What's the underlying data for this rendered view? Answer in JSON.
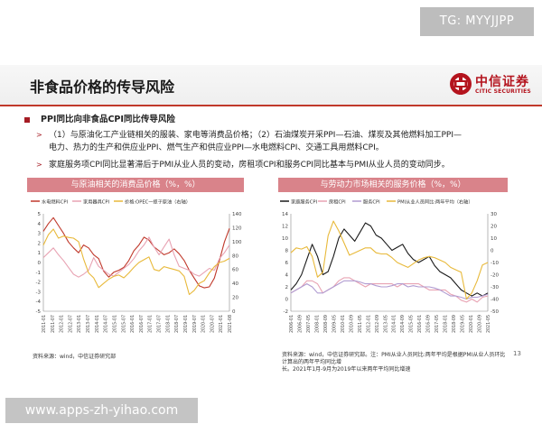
{
  "watermark_top": "TG: MYYJJPP",
  "watermark_bottom": "www.apps-zh-yihao.com",
  "slide_title": "非食品价格的传导风险",
  "logo": {
    "cn": "中信证券",
    "en": "CITIC SECURITIES",
    "color": "#b4141e"
  },
  "accent_color": "#a51c24",
  "bullet": {
    "main": "PPI同比向非食品CPI同比传导风险",
    "sub1_line1": "（1）与原油化工产业链相关的服装、家电等消费品价格；（2）石油煤炭开采PPI—石油、煤炭及其他燃料加工PPI—",
    "sub1_line2": "电力、热力的生产和供应业PPI、燃气生产和供应业PPI—水电燃料CPI、交通工具用燃料CPI。",
    "sub2": "家庭服务项CPI同比显著滞后于PMI从业人员的变动，房租项CPI和服务CPI同比基本与PMI从业人员的变动同步。"
  },
  "left_panel": {
    "header": "与原油相关的消费品价格（%，%）",
    "source": "资料来源：wind，中信证券研究部"
  },
  "right_panel": {
    "header": "与劳动力市场相关的服务价格（%，%）",
    "source_line1": "资料来源：wind，中信证券研究部。注：PMI从业人员同比:两年平均是根据PMI从业人员环比计算出的两年平均同比增",
    "source_line2": "长。2021年1月-9月为2019年以来两年平均同比增速"
  },
  "page_number": "13",
  "chart_data": [
    {
      "type": "line",
      "legend": [
        "水电燃料CPI",
        "家用器具CPI",
        "价格:OPEC一揽子原油（右轴）"
      ],
      "colors": [
        "#c0392b",
        "#e8a3b3",
        "#e8b93a"
      ],
      "y_left": {
        "ticks": [
          "-5",
          "-4",
          "-3",
          "-2",
          "-1",
          "0",
          "1",
          "2",
          "3",
          "4",
          "5"
        ],
        "min": -5,
        "max": 5
      },
      "y_right": {
        "ticks": [
          "0",
          "20",
          "40",
          "60",
          "80",
          "100",
          "120",
          "140"
        ],
        "min": 0,
        "max": 140
      },
      "x_ticks": [
        "2011-01",
        "2011-07",
        "2012-01",
        "2012-07",
        "2013-01",
        "2013-07",
        "2014-01",
        "2014-07",
        "2015-01",
        "2015-07",
        "2016-01",
        "2016-07",
        "2017-01",
        "2017-07",
        "2018-01",
        "2018-07",
        "2019-01",
        "2019-07",
        "2020-01",
        "2020-07",
        "2021-01",
        "2021-08"
      ],
      "series": [
        {
          "name": "水电燃料CPI",
          "values": [
            3.2,
            4.0,
            4.6,
            3.8,
            3.0,
            2.1,
            1.5,
            1.0,
            1.8,
            1.5,
            0.8,
            0.4,
            -0.9,
            -1.5,
            -1.0,
            -0.8,
            -0.5,
            0.2,
            1.2,
            1.8,
            2.6,
            2.3,
            1.6,
            1.2,
            0.8,
            1.0,
            1.4,
            0.9,
            0.2,
            -0.8,
            -1.6,
            -2.4,
            -2.6,
            -2.5,
            -1.6,
            0.2,
            2.1,
            3.5
          ]
        },
        {
          "name": "家用器具CPI",
          "values": [
            0.5,
            1.0,
            1.5,
            0.8,
            0.2,
            -0.5,
            -1.2,
            -1.5,
            -1.2,
            -0.8,
            0.5,
            -0.4,
            -0.8,
            -1.2,
            -1.4,
            -1.0,
            -0.6,
            -0.2,
            0.4,
            1.2,
            1.8,
            2.6,
            1.6,
            0.8,
            1.6,
            2.4,
            0.8,
            -0.4,
            -0.6,
            -0.8,
            -1.2,
            -1.4,
            -1.0,
            -0.6,
            -0.8,
            0.4,
            1.0,
            1.8
          ]
        },
        {
          "name": "价格:OPEC一揽子原油（右轴）",
          "values": [
            95,
            110,
            118,
            105,
            108,
            106,
            105,
            100,
            75,
            55,
            48,
            34,
            40,
            46,
            50,
            52,
            48,
            55,
            63,
            70,
            74,
            78,
            60,
            58,
            64,
            62,
            60,
            58,
            50,
            24,
            30,
            40,
            44,
            55,
            64,
            70,
            72,
            76
          ]
        }
      ]
    },
    {
      "type": "line",
      "legend": [
        "家庭服务CPI",
        "房租CPI",
        "服务CPI",
        "PMI从业人员同比:两年平均（右轴）"
      ],
      "colors": [
        "#1a1a1a",
        "#e8a3b3",
        "#b09bd1",
        "#e8b93a"
      ],
      "y_left": {
        "ticks": [
          "-2",
          "0",
          "2",
          "4",
          "6",
          "8",
          "10",
          "12",
          "14"
        ],
        "min": -2,
        "max": 14
      },
      "y_right": {
        "ticks": [
          "-50",
          "-40",
          "-30",
          "-20",
          "-10",
          "0",
          "10",
          "20",
          "30"
        ],
        "min": -50,
        "max": 30
      },
      "x_ticks": [
        "2006-01",
        "2006-09",
        "2007-05",
        "2008-01",
        "2008-09",
        "2009-05",
        "2010-01",
        "2010-09",
        "2011-05",
        "2012-01",
        "2012-09",
        "2013-05",
        "2014-01",
        "2014-09",
        "2015-05",
        "2016-01",
        "2016-09",
        "2017-05",
        "2018-01",
        "2018-09",
        "2019-05",
        "2020-01",
        "2020-09",
        "2021-05"
      ],
      "series": [
        {
          "name": "家庭服务CPI",
          "values": [
            1.5,
            2.5,
            4.0,
            6.5,
            9.0,
            7.0,
            4.0,
            4.5,
            7.0,
            10.0,
            11.5,
            10.5,
            9.5,
            11.0,
            12.5,
            12.0,
            10.5,
            10.0,
            9.0,
            8.0,
            8.5,
            9.0,
            7.5,
            6.5,
            6.0,
            6.5,
            7.0,
            5.5,
            4.5,
            4.0,
            3.5,
            2.5,
            1.5,
            1.0,
            0.5,
            1.0,
            0.5,
            1.0
          ]
        },
        {
          "name": "房租CPI",
          "values": [
            1.0,
            1.5,
            2.0,
            3.0,
            3.0,
            2.5,
            1.0,
            1.5,
            2.0,
            3.0,
            3.5,
            3.5,
            3.0,
            2.5,
            2.0,
            2.5,
            2.5,
            2.5,
            2.5,
            2.5,
            2.0,
            2.5,
            2.5,
            2.5,
            2.5,
            2.0,
            1.5,
            1.5,
            1.5,
            1.5,
            0.8,
            0.5,
            -0.2,
            -0.5,
            0.0,
            -0.5,
            0.3,
            0.5
          ]
        },
        {
          "name": "服务CPI",
          "values": [
            1.0,
            1.5,
            2.0,
            2.5,
            2.0,
            1.0,
            1.0,
            1.5,
            2.0,
            2.5,
            3.0,
            3.0,
            3.0,
            2.8,
            2.5,
            2.5,
            2.2,
            2.0,
            2.0,
            2.2,
            2.5,
            2.5,
            2.0,
            2.2,
            2.0,
            2.0,
            2.0,
            1.8,
            1.5,
            1.0,
            0.5,
            0.5,
            0.3,
            0.0,
            0.3,
            0.3,
            0.5,
            0.8
          ]
        },
        {
          "name": "PMI从业人员同比:两年平均（右轴）",
          "values": [
            -2,
            2,
            1,
            3,
            -5,
            -22,
            -18,
            12,
            24,
            16,
            6,
            -4,
            -2,
            0,
            2,
            2,
            -2,
            -3,
            -3,
            -6,
            -10,
            -12,
            -14,
            -11,
            -8,
            -6,
            -5,
            -6,
            -8,
            -10,
            -14,
            -16,
            -18,
            -40,
            -35,
            -25,
            -12,
            -10
          ]
        }
      ]
    }
  ]
}
